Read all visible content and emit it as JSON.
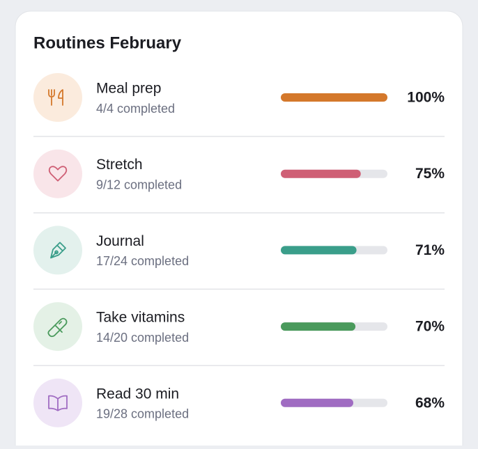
{
  "header": {
    "title": "Routines February"
  },
  "items": [
    {
      "name": "Meal prep",
      "progress": "4/4 completed",
      "percent": 100,
      "percent_label": "100%",
      "color": "#d4782b",
      "tint": "#fbebdd"
    },
    {
      "name": "Stretch",
      "progress": "9/12 completed",
      "percent": 75,
      "percent_label": "75%",
      "color": "#cf5f75",
      "tint": "#f9e5e9"
    },
    {
      "name": "Journal",
      "progress": "17/24 completed",
      "percent": 71,
      "percent_label": "71%",
      "color": "#3a9e8a",
      "tint": "#e3f1ed"
    },
    {
      "name": "Take vitamins",
      "progress": "14/20 completed",
      "percent": 70,
      "percent_label": "70%",
      "color": "#4a9a5c",
      "tint": "#e4f1e6"
    },
    {
      "name": "Read 30 min",
      "progress": "19/28 completed",
      "percent": 68,
      "percent_label": "68%",
      "color": "#a06cc2",
      "tint": "#efe5f6"
    }
  ]
}
